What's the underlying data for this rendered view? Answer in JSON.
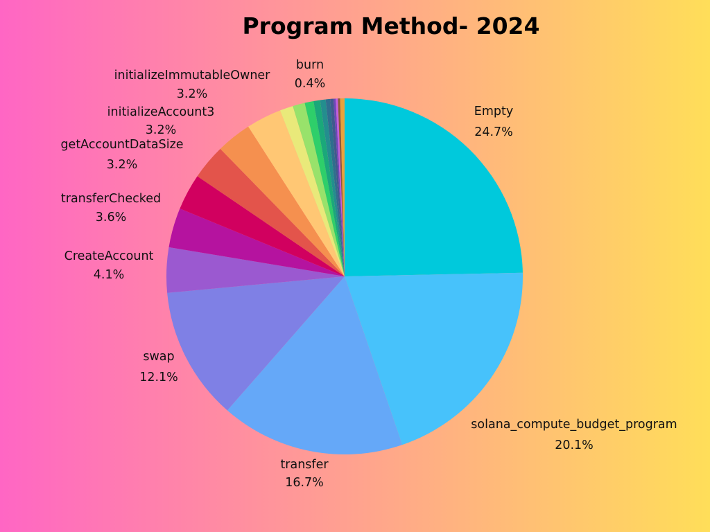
{
  "chart_data": {
    "type": "pie",
    "title": "Program Method- 2024",
    "slices": [
      {
        "label": "Empty",
        "value": 24.7,
        "display": "24.7%",
        "color": "#00c9dc"
      },
      {
        "label": "solana_compute_budget_program",
        "value": 20.1,
        "display": "20.1%",
        "color": "#47c2fb"
      },
      {
        "label": "transfer",
        "value": 16.7,
        "display": "16.7%",
        "color": "#65a8f8"
      },
      {
        "label": "swap",
        "value": 12.1,
        "display": "12.1%",
        "color": "#7f80e5"
      },
      {
        "label": "CreateAccount",
        "value": 4.1,
        "display": "4.1%",
        "color": "#9b59d0"
      },
      {
        "label": "transferChecked",
        "value": 3.6,
        "display": "3.6%",
        "color": "#b5139f"
      },
      {
        "label": "",
        "value": 3.3,
        "display": "",
        "color": "#d1005f"
      },
      {
        "label": "getAccountDataSize",
        "value": 3.2,
        "display": "3.2%",
        "color": "#e3544b"
      },
      {
        "label": "initializeAccount3",
        "value": 3.2,
        "display": "3.2%",
        "color": "#f5904f"
      },
      {
        "label": "initializeImmutableOwner",
        "value": 3.2,
        "display": "3.2%",
        "color": "#ffc774"
      },
      {
        "label": "",
        "value": 1.2,
        "display": "",
        "color": "#e9e97a"
      },
      {
        "label": "",
        "value": 1.1,
        "display": "",
        "color": "#98e26b"
      },
      {
        "label": "",
        "value": 0.8,
        "display": "",
        "color": "#2ecf6a"
      },
      {
        "label": "",
        "value": 0.6,
        "display": "",
        "color": "#1aa87a"
      },
      {
        "label": "",
        "value": 0.5,
        "display": "",
        "color": "#238e8e"
      },
      {
        "label": "",
        "value": 0.4,
        "display": "",
        "color": "#2f6e8e"
      },
      {
        "label": "",
        "value": 0.3,
        "display": "",
        "color": "#3f5a8e"
      },
      {
        "label": "",
        "value": 0.2,
        "display": "",
        "color": "#6c48b8"
      },
      {
        "label": "",
        "value": 0.2,
        "display": "",
        "color": "#c15fe0"
      },
      {
        "label": "",
        "value": 0.2,
        "display": "",
        "color": "#8b5a3c"
      },
      {
        "label": "burn",
        "value": 0.4,
        "display": "0.4%",
        "color": "#e8a23c"
      }
    ]
  }
}
